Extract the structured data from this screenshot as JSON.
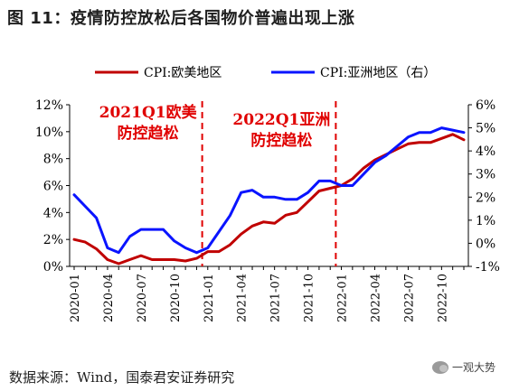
{
  "chart_data": {
    "type": "line",
    "title": "图 11：疫情防控放松后各国物价普遍出现上涨",
    "legend": {
      "placement": "top",
      "entries": [
        "CPI:欧美地区",
        "CPI:亚洲地区（右）"
      ]
    },
    "x": [
      "2020-01",
      "2020-02",
      "2020-03",
      "2020-04",
      "2020-05",
      "2020-06",
      "2020-07",
      "2020-08",
      "2020-09",
      "2020-10",
      "2020-11",
      "2020-12",
      "2021-01",
      "2021-02",
      "2021-03",
      "2021-04",
      "2021-05",
      "2021-06",
      "2021-07",
      "2021-08",
      "2021-09",
      "2021-10",
      "2021-11",
      "2021-12",
      "2022-01",
      "2022-02",
      "2022-03",
      "2022-04",
      "2022-05",
      "2022-06",
      "2022-07",
      "2022-08",
      "2022-09",
      "2022-10",
      "2022-11",
      "2022-12"
    ],
    "x_tick_labels": [
      "2020-01",
      "2020-04",
      "2020-07",
      "2020-10",
      "2021-01",
      "2021-04",
      "2021-07",
      "2021-10",
      "2022-01",
      "2022-04",
      "2022-07",
      "2022-10"
    ],
    "series": [
      {
        "name": "CPI:欧美地区",
        "axis": "left",
        "color": "#c00000",
        "values": [
          2.0,
          1.8,
          1.3,
          0.5,
          0.2,
          0.5,
          0.8,
          0.5,
          0.5,
          0.5,
          0.4,
          0.6,
          1.1,
          1.1,
          1.6,
          2.4,
          3.0,
          3.3,
          3.2,
          3.8,
          4.0,
          4.8,
          5.6,
          5.8,
          6.0,
          6.5,
          7.3,
          7.9,
          8.3,
          8.7,
          9.1,
          9.2,
          9.2,
          9.5,
          9.8,
          9.4
        ]
      },
      {
        "name": "CPI:亚洲地区（右）",
        "axis": "right",
        "color": "#0a14ff",
        "values": [
          2.1,
          1.6,
          1.1,
          -0.2,
          -0.4,
          0.3,
          0.6,
          0.6,
          0.6,
          0.1,
          -0.2,
          -0.4,
          -0.2,
          0.5,
          1.2,
          2.2,
          2.3,
          2.0,
          2.0,
          1.9,
          1.9,
          2.2,
          2.7,
          2.7,
          2.5,
          2.5,
          3.0,
          3.5,
          3.8,
          4.2,
          4.6,
          4.8,
          4.8,
          5.0,
          4.9,
          4.8
        ]
      }
    ],
    "left_axis": {
      "ylim": [
        0,
        12
      ],
      "tick_labels": [
        "0%",
        "2%",
        "4%",
        "6%",
        "8%",
        "10%",
        "12%"
      ]
    },
    "right_axis": {
      "ylim": [
        -1,
        6
      ],
      "tick_labels": [
        "-1%",
        "0%",
        "1%",
        "2%",
        "3%",
        "4%",
        "5%",
        "6%"
      ]
    },
    "grid": false,
    "markers": [
      {
        "at": "2020-12",
        "color": "#e00000",
        "style": "dashed",
        "label_lines": [
          "2021Q1欧美",
          "防控趋松"
        ]
      },
      {
        "at": "2021-12",
        "color": "#e00000",
        "style": "dashed",
        "label_lines": [
          "2022Q1亚洲",
          "防控趋松"
        ]
      }
    ]
  },
  "source": "数据来源：Wind，国泰君安证券研究",
  "watermark": "一观大势"
}
